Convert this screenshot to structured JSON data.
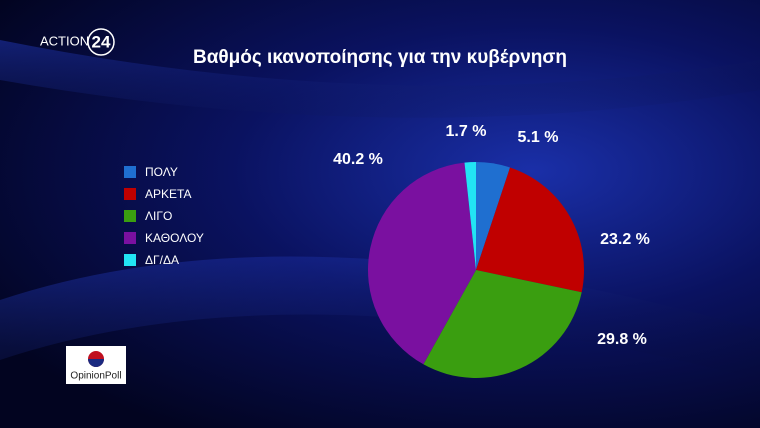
{
  "branding": {
    "channel": "ACTION",
    "channel_number": "24",
    "pollster": "OpinionPoll"
  },
  "chart_data": {
    "type": "pie",
    "title": "Βαθμός ικανοποίησης για την κυβέρνηση",
    "categories": [
      "ΠΟΛΥ",
      "ΑΡΚΕΤΑ",
      "ΛΙΓΟ",
      "ΚΑΘΟΛΟΥ",
      "ΔΓ/ΔΑ"
    ],
    "values": [
      5.1,
      23.2,
      29.8,
      40.2,
      1.7
    ],
    "value_labels": [
      "5.1 %",
      "23.2 %",
      "29.8 %",
      "40.2 %",
      "1.7 %"
    ],
    "colors": [
      "#1f6fd0",
      "#c00000",
      "#3a9e10",
      "#7a10a0",
      "#22e4f4"
    ],
    "legend": "left"
  }
}
